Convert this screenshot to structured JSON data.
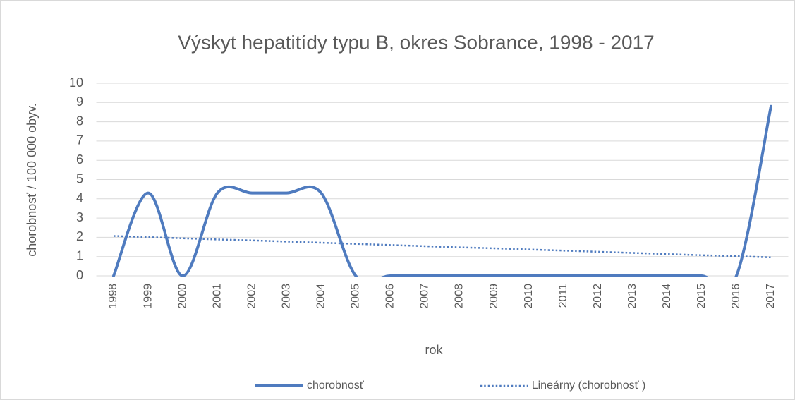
{
  "chart_data": {
    "type": "line",
    "title": "Výskyt hepatitídy typu B, okres Sobrance, 1998 - 2017",
    "x_label": "rok",
    "y_label": "chorobnosť / 100 000 obyv.",
    "categories": [
      "1998",
      "1999",
      "2000",
      "2001",
      "2002",
      "2003",
      "2004",
      "2005",
      "2006",
      "2007",
      "2008",
      "2009",
      "2010",
      "2011",
      "2012",
      "2013",
      "2014",
      "2015",
      "2016",
      "2017"
    ],
    "series": [
      {
        "name": "chorobnosť",
        "color": "#4f7bbf",
        "style": "solid",
        "smooth": true,
        "values": [
          0,
          4.3,
          0,
          4.3,
          4.3,
          4.3,
          4.3,
          0,
          0,
          0,
          0,
          0,
          0,
          0,
          0,
          0,
          0,
          0,
          0,
          8.8
        ]
      },
      {
        "name": "Lineárny (chorobnosť )",
        "color": "#4f7bbf",
        "style": "dotted",
        "smooth": false,
        "values": [
          2.07,
          2.01,
          1.95,
          1.89,
          1.84,
          1.78,
          1.72,
          1.66,
          1.6,
          1.54,
          1.48,
          1.43,
          1.37,
          1.31,
          1.25,
          1.19,
          1.13,
          1.07,
          1.02,
          0.96
        ]
      }
    ],
    "ylim": [
      0,
      10
    ],
    "yticks": [
      0,
      1,
      2,
      3,
      4,
      5,
      6,
      7,
      8,
      9,
      10
    ],
    "grid": true,
    "legend": "bottom"
  }
}
